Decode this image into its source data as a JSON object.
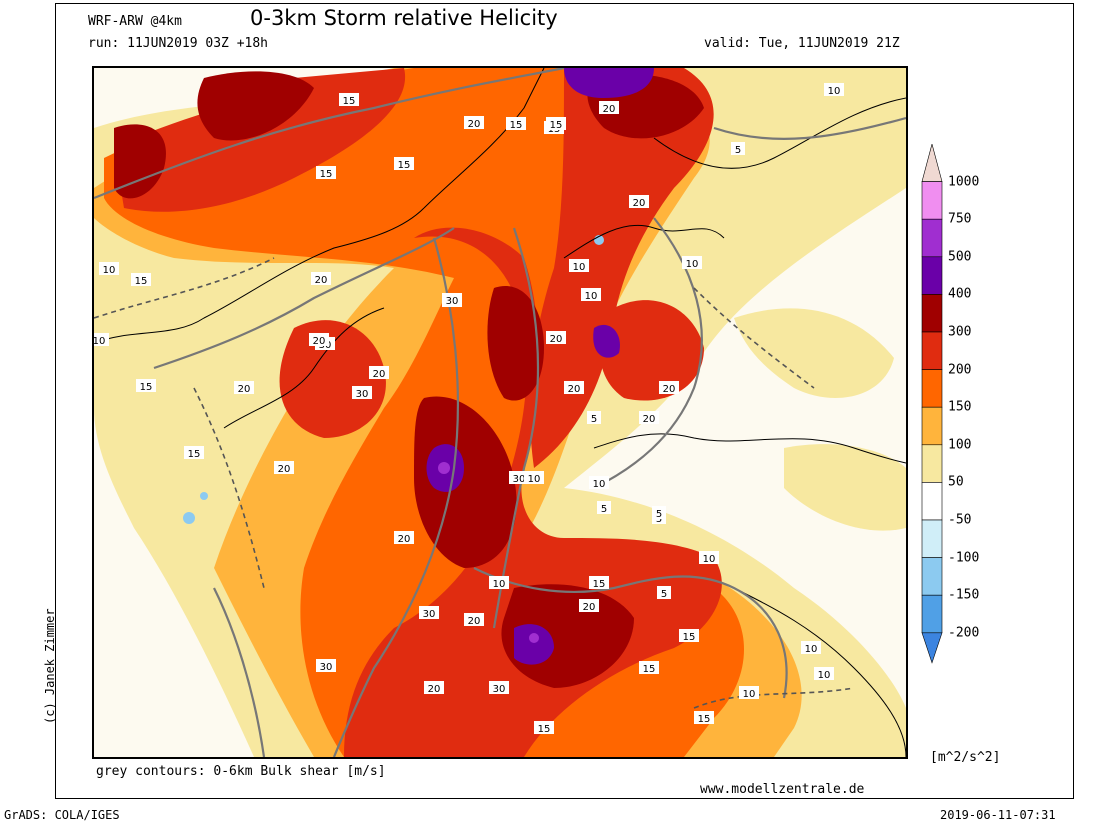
{
  "header": {
    "model": "WRF-ARW @4km",
    "title": "0-3km Storm relative Helicity",
    "run": "run: 11JUN2019 03Z +18h",
    "valid": "valid: Tue, 11JUN2019 21Z"
  },
  "footer": {
    "contour_note": "grey contours: 0-6km Bulk shear [m/s]",
    "website": "www.modellzentrale.de",
    "credit": "(c) Janek Zimmer",
    "grads": "GrADS: COLA/IGES",
    "timestamp": "2019-06-11-07:31"
  },
  "legend": {
    "units": "[m^2/s^2]",
    "levels": [
      "1000",
      "750",
      "500",
      "400",
      "300",
      "200",
      "150",
      "100",
      "50",
      "-50",
      "-100",
      "-150",
      "-200"
    ],
    "colors": [
      "#f0d9d2",
      "#f08ef0",
      "#a02ed0",
      "#6a00a8",
      "#a00000",
      "#e02c10",
      "#ff6600",
      "#ffb43c",
      "#f7e8a0",
      "#ffffff",
      "#d0eef8",
      "#8ccaf0",
      "#50a0e6",
      "#3c84e0"
    ]
  },
  "contour_labels": [
    {
      "text": "15"
    },
    {
      "text": "15"
    },
    {
      "text": "10"
    },
    {
      "text": "5"
    },
    {
      "text": "10"
    },
    {
      "text": "15"
    },
    {
      "text": "20"
    },
    {
      "text": "15"
    },
    {
      "text": "15"
    },
    {
      "text": "20"
    },
    {
      "text": "20"
    },
    {
      "text": "15"
    },
    {
      "text": "10"
    },
    {
      "text": "10"
    },
    {
      "text": "30"
    },
    {
      "text": "20"
    },
    {
      "text": "15"
    },
    {
      "text": "10"
    },
    {
      "text": "20"
    },
    {
      "text": "20"
    },
    {
      "text": "10"
    },
    {
      "text": "30"
    },
    {
      "text": "20"
    },
    {
      "text": "30"
    },
    {
      "text": "20"
    },
    {
      "text": "15"
    },
    {
      "text": "30"
    },
    {
      "text": "20"
    },
    {
      "text": "5"
    },
    {
      "text": "20"
    },
    {
      "text": "15"
    },
    {
      "text": "30"
    },
    {
      "text": "20"
    },
    {
      "text": "10"
    },
    {
      "text": "10"
    },
    {
      "text": "5"
    },
    {
      "text": "20"
    },
    {
      "text": "20"
    },
    {
      "text": "5"
    },
    {
      "text": "10"
    },
    {
      "text": "15"
    },
    {
      "text": "10"
    },
    {
      "text": "20"
    },
    {
      "text": "5"
    },
    {
      "text": "20"
    },
    {
      "text": "20"
    },
    {
      "text": "15"
    },
    {
      "text": "15"
    },
    {
      "text": "30"
    },
    {
      "text": "30"
    },
    {
      "text": "20"
    },
    {
      "text": "30"
    },
    {
      "text": "15"
    },
    {
      "text": "15"
    },
    {
      "text": "5"
    },
    {
      "text": "10"
    },
    {
      "text": "10"
    },
    {
      "text": "10"
    }
  ]
}
